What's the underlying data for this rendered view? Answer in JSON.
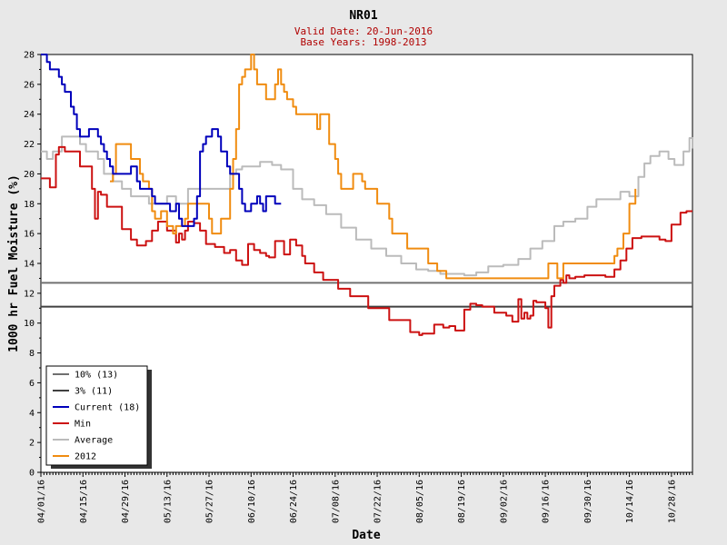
{
  "chart_data": {
    "type": "line",
    "title": "NR01",
    "subtitle1": "Valid Date: 20-Jun-2016",
    "subtitle2": "Base Years: 1998-2013",
    "xlabel": "Date",
    "ylabel": "1000 hr Fuel Moisture (%)",
    "ylim": [
      0,
      28
    ],
    "yticks": [
      "0",
      "2",
      "4",
      "6",
      "8",
      "10",
      "12",
      "14",
      "16",
      "18",
      "20",
      "22",
      "24",
      "26",
      "28"
    ],
    "xlim": [
      "2016-04-01",
      "2016-11-04"
    ],
    "xtick_labels": [
      "04/01/16",
      "04/15/16",
      "04/29/16",
      "05/13/16",
      "05/27/16",
      "06/10/16",
      "06/24/16",
      "07/08/16",
      "07/22/16",
      "08/05/16",
      "08/19/16",
      "09/02/16",
      "09/16/16",
      "09/30/16",
      "10/14/16",
      "10/28/16"
    ],
    "xtick_dates": [
      "2016-04-01",
      "2016-04-15",
      "2016-04-29",
      "2016-05-13",
      "2016-05-27",
      "2016-06-10",
      "2016-06-24",
      "2016-07-08",
      "2016-07-22",
      "2016-08-05",
      "2016-08-19",
      "2016-09-02",
      "2016-09-16",
      "2016-09-30",
      "2016-10-14",
      "2016-10-28"
    ],
    "grid": false,
    "legend_position": "bottom-left",
    "hlines": [
      {
        "name": "10% (13)",
        "value": 12.7,
        "color": "#707070"
      },
      {
        "name": "3% (11)",
        "value": 11.1,
        "color": "#404040"
      }
    ],
    "series": [
      {
        "name": "Current (18)",
        "color": "#0000bb",
        "x": [
          "2016-04-01",
          "2016-04-03",
          "2016-04-04",
          "2016-04-06",
          "2016-04-07",
          "2016-04-08",
          "2016-04-09",
          "2016-04-10",
          "2016-04-11",
          "2016-04-12",
          "2016-04-13",
          "2016-04-14",
          "2016-04-15",
          "2016-04-16",
          "2016-04-17",
          "2016-04-18",
          "2016-04-19",
          "2016-04-20",
          "2016-04-21",
          "2016-04-22",
          "2016-04-23",
          "2016-04-24",
          "2016-04-25",
          "2016-04-27",
          "2016-04-28",
          "2016-04-29",
          "2016-04-30",
          "2016-05-01",
          "2016-05-03",
          "2016-05-04",
          "2016-05-06",
          "2016-05-08",
          "2016-05-09",
          "2016-05-10",
          "2016-05-11",
          "2016-05-12",
          "2016-05-13",
          "2016-05-14",
          "2016-05-16",
          "2016-05-17",
          "2016-05-18",
          "2016-05-19",
          "2016-05-20",
          "2016-05-21",
          "2016-05-22",
          "2016-05-23",
          "2016-05-24",
          "2016-05-25",
          "2016-05-26",
          "2016-05-27",
          "2016-05-28",
          "2016-05-29",
          "2016-05-30",
          "2016-05-31",
          "2016-06-02",
          "2016-06-03",
          "2016-06-04",
          "2016-06-06",
          "2016-06-07",
          "2016-06-08",
          "2016-06-09",
          "2016-06-10",
          "2016-06-11",
          "2016-06-12",
          "2016-06-13",
          "2016-06-14",
          "2016-06-15",
          "2016-06-16",
          "2016-06-17",
          "2016-06-18",
          "2016-06-19",
          "2016-06-20"
        ],
        "y": [
          28,
          27.5,
          27,
          27,
          26.5,
          26,
          25.5,
          25.5,
          24.5,
          24,
          23,
          22.5,
          22.5,
          22.5,
          23,
          23,
          23,
          22.5,
          22,
          21.5,
          21,
          20.5,
          20,
          20,
          20,
          20,
          20,
          20.5,
          19.5,
          19,
          19,
          18.5,
          18,
          18,
          18,
          18,
          18,
          17.5,
          18,
          17,
          16.5,
          16.5,
          16.5,
          16.5,
          17,
          18.5,
          21.5,
          22,
          22.5,
          22.5,
          23,
          23,
          22.5,
          21.5,
          20.5,
          20,
          20,
          19,
          18,
          17.5,
          17.5,
          18,
          18,
          18.5,
          18,
          17.5,
          18.5,
          18.5,
          18.5,
          18,
          18,
          18
        ]
      },
      {
        "name": "Min",
        "color": "#cc1111",
        "x": [
          "2016-04-01",
          "2016-04-04",
          "2016-04-06",
          "2016-04-07",
          "2016-04-09",
          "2016-04-14",
          "2016-04-18",
          "2016-04-19",
          "2016-04-20",
          "2016-04-21",
          "2016-04-23",
          "2016-04-28",
          "2016-05-01",
          "2016-05-03",
          "2016-05-06",
          "2016-05-08",
          "2016-05-10",
          "2016-05-13",
          "2016-05-16",
          "2016-05-17",
          "2016-05-18",
          "2016-05-19",
          "2016-05-20",
          "2016-05-22",
          "2016-05-24",
          "2016-05-26",
          "2016-05-29",
          "2016-06-01",
          "2016-06-03",
          "2016-06-05",
          "2016-06-07",
          "2016-06-09",
          "2016-06-11",
          "2016-06-13",
          "2016-06-15",
          "2016-06-16",
          "2016-06-18",
          "2016-06-21",
          "2016-06-23",
          "2016-06-25",
          "2016-06-27",
          "2016-06-28",
          "2016-07-01",
          "2016-07-04",
          "2016-07-09",
          "2016-07-13",
          "2016-07-19",
          "2016-07-26",
          "2016-08-02",
          "2016-08-05",
          "2016-08-06",
          "2016-08-10",
          "2016-08-13",
          "2016-08-15",
          "2016-08-17",
          "2016-08-19",
          "2016-08-20",
          "2016-08-22",
          "2016-08-24",
          "2016-08-26",
          "2016-08-30",
          "2016-09-03",
          "2016-09-05",
          "2016-09-07",
          "2016-09-08",
          "2016-09-09",
          "2016-09-10",
          "2016-09-11",
          "2016-09-12",
          "2016-09-13",
          "2016-09-14",
          "2016-09-16",
          "2016-09-17",
          "2016-09-18",
          "2016-09-19",
          "2016-09-21",
          "2016-09-22",
          "2016-09-23",
          "2016-09-24",
          "2016-09-26",
          "2016-09-27",
          "2016-09-29",
          "2016-10-03",
          "2016-10-06",
          "2016-10-09",
          "2016-10-11",
          "2016-10-13",
          "2016-10-15",
          "2016-10-18",
          "2016-10-22",
          "2016-10-24",
          "2016-10-26",
          "2016-10-28",
          "2016-10-31",
          "2016-11-02",
          "2016-11-04"
        ],
        "y": [
          19.7,
          19.1,
          21.3,
          21.8,
          21.5,
          20.5,
          19,
          17,
          18.8,
          18.6,
          17.8,
          16.3,
          15.6,
          15.2,
          15.5,
          16.2,
          16.8,
          16.2,
          15.4,
          16,
          15.6,
          16.2,
          16.8,
          16.7,
          16.2,
          15.3,
          15.1,
          14.7,
          14.9,
          14.2,
          13.9,
          15.3,
          14.9,
          14.7,
          14.5,
          14.4,
          15.5,
          14.6,
          15.6,
          15.2,
          14.5,
          14,
          13.4,
          12.9,
          12.3,
          11.8,
          11,
          10.2,
          9.4,
          9.2,
          9.3,
          9.9,
          9.7,
          9.8,
          9.5,
          9.5,
          10.9,
          11.3,
          11.2,
          11.1,
          10.7,
          10.5,
          10.1,
          11.6,
          10.3,
          10.7,
          10.3,
          10.5,
          11.5,
          11.4,
          11.4,
          11,
          9.7,
          11.8,
          12.5,
          12.9,
          12.7,
          13.2,
          13,
          13.1,
          13.1,
          13.2,
          13.2,
          13.1,
          13.6,
          14.2,
          15,
          15.7,
          15.8,
          15.8,
          15.6,
          15.5,
          16.6,
          17.4,
          17.5,
          17.5
        ]
      },
      {
        "name": "Average",
        "color": "#bbbbbb",
        "x": [
          "2016-04-01",
          "2016-04-03",
          "2016-04-05",
          "2016-04-08",
          "2016-04-10",
          "2016-04-14",
          "2016-04-16",
          "2016-04-20",
          "2016-04-22",
          "2016-04-25",
          "2016-04-28",
          "2016-05-01",
          "2016-05-04",
          "2016-05-07",
          "2016-05-10",
          "2016-05-13",
          "2016-05-16",
          "2016-05-20",
          "2016-05-24",
          "2016-05-28",
          "2016-06-01",
          "2016-06-03",
          "2016-06-05",
          "2016-06-07",
          "2016-06-10",
          "2016-06-13",
          "2016-06-17",
          "2016-06-20",
          "2016-06-24",
          "2016-06-27",
          "2016-07-01",
          "2016-07-05",
          "2016-07-10",
          "2016-07-15",
          "2016-07-20",
          "2016-07-25",
          "2016-07-30",
          "2016-08-04",
          "2016-08-08",
          "2016-08-12",
          "2016-08-16",
          "2016-08-20",
          "2016-08-24",
          "2016-08-28",
          "2016-09-02",
          "2016-09-07",
          "2016-09-11",
          "2016-09-15",
          "2016-09-19",
          "2016-09-22",
          "2016-09-26",
          "2016-09-30",
          "2016-10-03",
          "2016-10-07",
          "2016-10-11",
          "2016-10-14",
          "2016-10-17",
          "2016-10-19",
          "2016-10-21",
          "2016-10-24",
          "2016-10-27",
          "2016-10-29",
          "2016-11-01",
          "2016-11-03",
          "2016-11-04"
        ],
        "y": [
          21.5,
          21,
          21.5,
          22.5,
          22.5,
          22,
          21.5,
          21,
          20,
          19.5,
          19,
          18.5,
          18.5,
          18,
          18,
          18.5,
          18,
          19,
          19,
          19,
          19,
          20,
          20.3,
          20.5,
          20.5,
          20.8,
          20.6,
          20.3,
          19,
          18.3,
          17.9,
          17.3,
          16.4,
          15.6,
          15,
          14.5,
          14,
          13.6,
          13.5,
          13.3,
          13.3,
          13.2,
          13.4,
          13.8,
          13.9,
          14.3,
          15,
          15.5,
          16.5,
          16.8,
          17,
          17.8,
          18.3,
          18.3,
          18.8,
          18.5,
          19.8,
          20.7,
          21.2,
          21.5,
          21,
          20.6,
          21.5,
          22.4,
          21.7
        ]
      },
      {
        "name": "2012",
        "color": "#f08c10",
        "x": [
          "2016-04-24",
          "2016-04-25",
          "2016-04-26",
          "2016-04-30",
          "2016-05-01",
          "2016-05-03",
          "2016-05-04",
          "2016-05-05",
          "2016-05-07",
          "2016-05-08",
          "2016-05-09",
          "2016-05-11",
          "2016-05-13",
          "2016-05-15",
          "2016-05-16",
          "2016-05-19",
          "2016-05-20",
          "2016-05-25",
          "2016-05-27",
          "2016-05-28",
          "2016-05-30",
          "2016-05-31",
          "2016-06-03",
          "2016-06-04",
          "2016-06-05",
          "2016-06-06",
          "2016-06-07",
          "2016-06-08",
          "2016-06-09",
          "2016-06-10",
          "2016-06-11",
          "2016-06-12",
          "2016-06-14",
          "2016-06-15",
          "2016-06-16",
          "2016-06-17",
          "2016-06-18",
          "2016-06-19",
          "2016-06-20",
          "2016-06-21",
          "2016-06-22",
          "2016-06-23",
          "2016-06-24",
          "2016-06-25",
          "2016-06-30",
          "2016-07-01",
          "2016-07-02",
          "2016-07-03",
          "2016-07-06",
          "2016-07-07",
          "2016-07-08",
          "2016-07-09",
          "2016-07-10",
          "2016-07-11",
          "2016-07-12",
          "2016-07-14",
          "2016-07-15",
          "2016-07-16",
          "2016-07-17",
          "2016-07-18",
          "2016-07-19",
          "2016-07-21",
          "2016-07-22",
          "2016-07-23",
          "2016-07-25",
          "2016-07-26",
          "2016-07-27",
          "2016-07-29",
          "2016-07-30",
          "2016-08-01",
          "2016-08-02",
          "2016-08-05",
          "2016-08-06",
          "2016-08-08",
          "2016-08-10",
          "2016-08-11",
          "2016-08-12",
          "2016-08-14",
          "2016-08-15",
          "2016-08-16",
          "2016-09-16",
          "2016-09-17",
          "2016-09-19",
          "2016-09-20",
          "2016-09-21",
          "2016-09-22",
          "2016-10-08",
          "2016-10-09",
          "2016-10-10",
          "2016-10-12",
          "2016-10-14",
          "2016-10-16"
        ],
        "y": [
          19.5,
          20,
          22,
          22,
          21,
          21,
          20,
          19.5,
          19,
          17.5,
          17,
          17.5,
          16.5,
          16,
          16.5,
          17,
          18,
          18,
          17,
          16,
          16,
          17,
          19,
          21,
          23,
          26,
          26.5,
          27,
          27,
          28,
          27,
          26,
          26,
          25,
          25,
          25,
          26,
          27,
          26,
          25.5,
          25,
          25,
          24.5,
          24,
          24,
          24,
          23,
          24,
          22,
          22,
          21,
          20,
          19,
          19,
          19,
          20,
          20,
          20,
          19.5,
          19,
          19,
          19,
          18,
          18,
          18,
          17,
          16,
          16,
          16,
          15,
          15,
          15,
          15,
          14,
          14,
          13.5,
          13.5,
          13,
          13,
          13,
          13,
          14,
          14,
          13,
          13,
          14,
          14,
          14.5,
          15,
          16,
          18,
          19
        ]
      }
    ]
  }
}
